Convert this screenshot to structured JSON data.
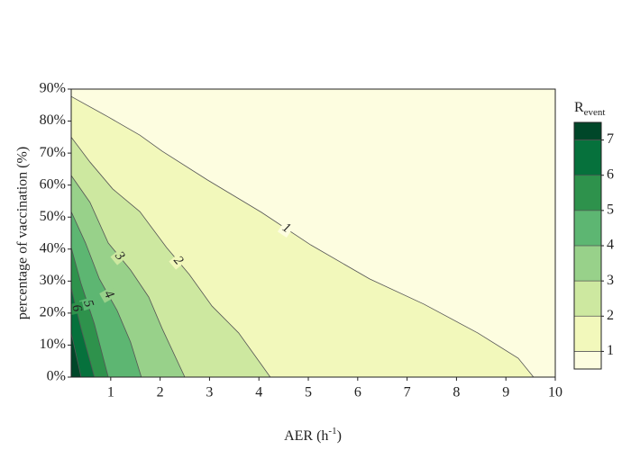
{
  "chart_data": {
    "type": "contour",
    "x_label": [
      "AER (h",
      "-1",
      ")"
    ],
    "y_label": "percentage of vaccination (%)",
    "xlim": [
      0.2,
      10
    ],
    "ylim": [
      0,
      90
    ],
    "xticks": [
      1,
      2,
      3,
      4,
      5,
      6,
      7,
      8,
      9,
      10
    ],
    "yticks": [
      {
        "value": 0,
        "label": "0%"
      },
      {
        "value": 10,
        "label": "10%"
      },
      {
        "value": 20,
        "label": "20%"
      },
      {
        "value": 30,
        "label": "30%"
      },
      {
        "value": 40,
        "label": "40%"
      },
      {
        "value": 50,
        "label": "50%"
      },
      {
        "value": 60,
        "label": "60%"
      },
      {
        "value": 70,
        "label": "70%"
      },
      {
        "value": 80,
        "label": "80%"
      },
      {
        "value": 90,
        "label": "90%"
      }
    ],
    "levels": [
      0.5,
      1,
      2,
      3,
      4,
      5,
      6,
      7,
      7.5
    ],
    "colors": [
      "#fdfde0",
      "#f2f8bb",
      "#cde8a0",
      "#98d18a",
      "#5db672",
      "#2e924c",
      "#06713c",
      "#004729"
    ],
    "contours": [
      {
        "level": 1,
        "x": [
          0.2,
          0.95,
          1.59,
          2.04,
          2.96,
          4.05,
          5.05,
          6.24,
          7.34,
          8.43,
          9.25,
          9.56
        ],
        "y": [
          87.7,
          81.3,
          75.6,
          70.6,
          61.6,
          51.5,
          41.3,
          30.7,
          22.8,
          13.8,
          5.9,
          0
        ]
      },
      {
        "level": 2,
        "x": [
          0.2,
          0.58,
          1.04,
          1.59,
          2.13,
          2.59,
          3.05,
          3.59,
          4.05,
          4.23
        ],
        "y": [
          75,
          67.2,
          58.8,
          51.7,
          40.5,
          32.1,
          22.2,
          13.8,
          3.9,
          0
        ]
      },
      {
        "level": 3,
        "x": [
          0.2,
          0.58,
          0.95,
          1.4,
          1.77,
          2.04,
          2.5
        ],
        "y": [
          63,
          54.6,
          41.9,
          33.5,
          25,
          15.2,
          0
        ]
      },
      {
        "level": 4,
        "x": [
          0.2,
          0.49,
          0.77,
          1.13,
          1.4,
          1.62
        ],
        "y": [
          51.7,
          41.9,
          30.7,
          20.8,
          11,
          0
        ]
      },
      {
        "level": 5,
        "x": [
          0.2,
          0.4,
          0.67,
          0.95
        ],
        "y": [
          40.5,
          29.2,
          16.6,
          0
        ]
      },
      {
        "level": 6,
        "x": [
          0.2,
          0.4,
          0.67
        ],
        "y": [
          27.8,
          15.2,
          0
        ]
      },
      {
        "level": 7,
        "x": [
          0.2,
          0.4
        ],
        "y": [
          13.8,
          0
        ]
      }
    ],
    "colorbar": {
      "title": [
        "R",
        "event"
      ],
      "ticks": [
        1,
        2,
        3,
        4,
        5,
        6,
        7
      ]
    }
  }
}
